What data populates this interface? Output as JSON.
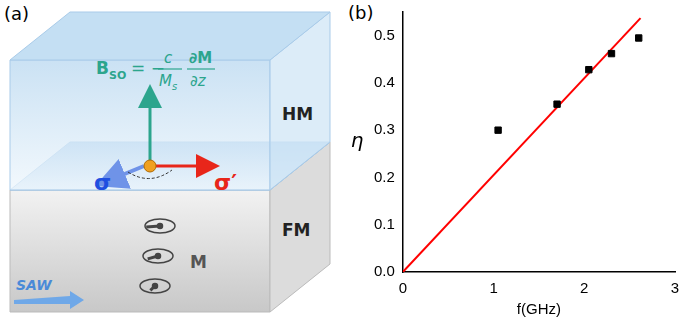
{
  "chart_data": {
    "type": "scatter",
    "panel_label": "(b)",
    "x_label": "f(GHz)",
    "y_label": "η",
    "series": [
      {
        "type": "scatter",
        "marker": "square",
        "color": "#000000",
        "x": [
          1.05,
          1.7,
          2.05,
          2.3,
          2.6
        ],
        "values": [
          0.3,
          0.355,
          0.428,
          0.462,
          0.495
        ]
      },
      {
        "type": "line",
        "line_style": "solid",
        "color": "#ff0000",
        "x": [
          0,
          2.62
        ],
        "values": [
          0,
          0.537
        ]
      }
    ],
    "xlim": [
      0,
      3
    ],
    "xticks": [
      0,
      1,
      2,
      3
    ],
    "ylim": [
      0,
      0.55
    ],
    "yticks": [
      {
        "value": 0,
        "label": "0.0"
      },
      0.1,
      0.2,
      0.3,
      0.4,
      0.5
    ],
    "grid": false
  },
  "diagram": {
    "panel_label": "(a)",
    "formula": {
      "lhs": "B",
      "lhs_sub": "SO",
      "sign": "= −",
      "num1": "c",
      "den1": "M",
      "den1_sub": "s",
      "num2": "∂M",
      "den2": "∂z"
    },
    "layers": [
      "HM",
      "FM"
    ],
    "spin_in": "σ",
    "spin_out": "σ′",
    "magnetization": "M",
    "wave": "SAW"
  }
}
